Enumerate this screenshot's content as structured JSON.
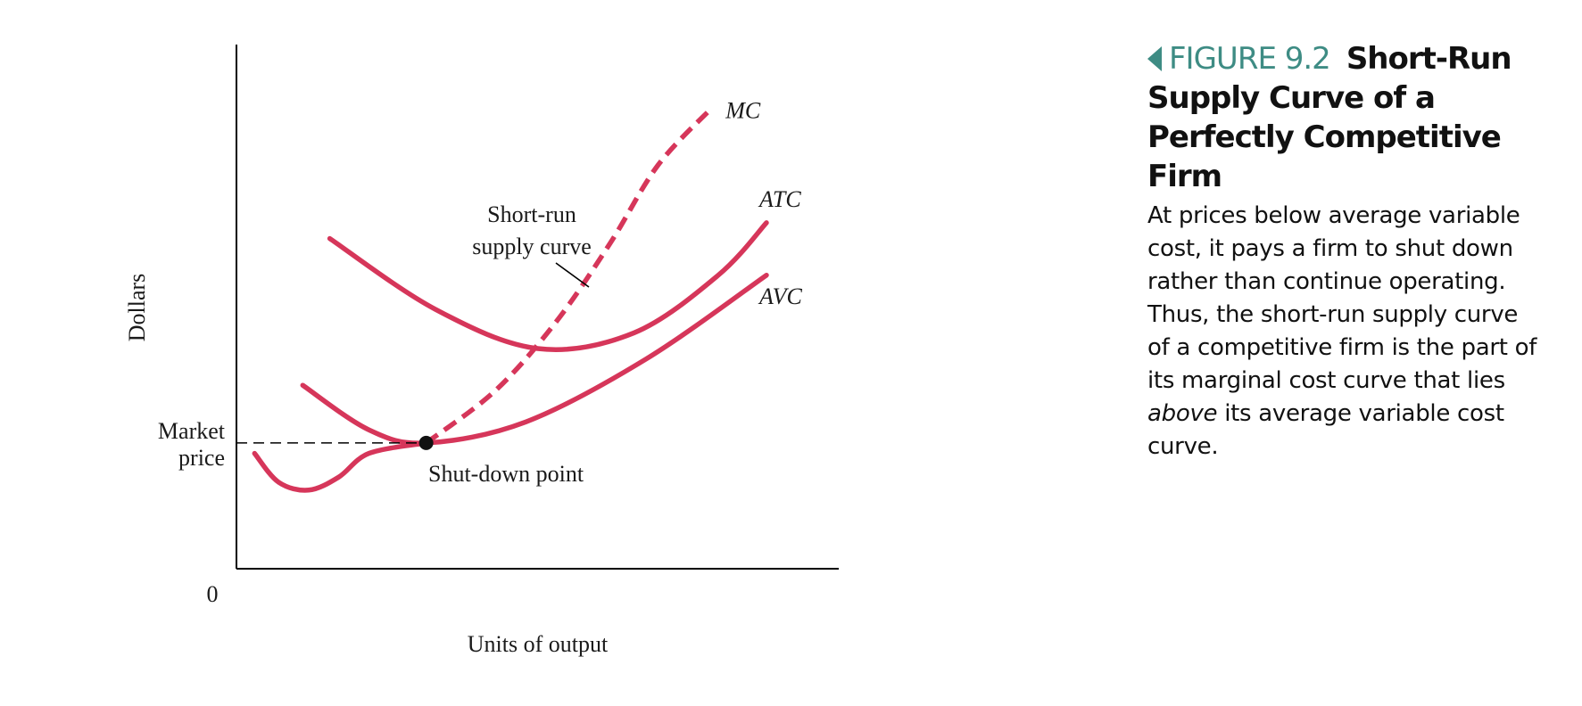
{
  "figure": {
    "label": "FIGURE 9.2",
    "title": "Short-Run Supply Curve of a Perfectly Competitive Firm",
    "caption_before": "At prices below average variable cost, it pays a firm to shut down rather than continue operating. Thus, the short-run supply curve of a competitive firm is the part of its marginal cost curve that lies ",
    "caption_emph": "above",
    "caption_after": " its average variable cost curve.",
    "accent_color": "#3e8c84"
  },
  "chart_data": {
    "type": "line",
    "xlabel": "Units of output",
    "ylabel": "Dollars",
    "origin_label": "0",
    "xlim": [
      0,
      10
    ],
    "ylim": [
      0,
      10
    ],
    "curve_color": "#d6365a",
    "series": [
      {
        "name": "MC",
        "style": "solid-then-dashed",
        "solid_x": [
          0.3,
          0.7,
          1.2,
          1.7,
          2.2,
          3.15
        ],
        "solid_y": [
          2.2,
          1.65,
          1.5,
          1.75,
          2.2,
          2.4
        ],
        "dashed_x": [
          3.15,
          4.3,
          5.3,
          6.2,
          7.0,
          7.9
        ],
        "dashed_y": [
          2.4,
          3.4,
          4.7,
          6.2,
          7.7,
          8.8
        ]
      },
      {
        "name": "ATC",
        "x": [
          1.55,
          3.3,
          5.0,
          6.6,
          8.0,
          8.8
        ],
        "y": [
          6.3,
          4.95,
          4.2,
          4.5,
          5.6,
          6.6
        ]
      },
      {
        "name": "AVC",
        "x": [
          1.1,
          2.2,
          3.15,
          4.8,
          6.8,
          8.8
        ],
        "y": [
          3.5,
          2.65,
          2.4,
          2.8,
          4.0,
          5.6
        ]
      }
    ],
    "market_price": 2.4,
    "shutdown_point": {
      "x": 3.15,
      "y": 2.4
    },
    "labels": {
      "market_price_line1": "Market",
      "market_price_line2": "price",
      "shutdown": "Shut-down point",
      "supply_line1": "Short-run",
      "supply_line2": "supply curve"
    }
  }
}
